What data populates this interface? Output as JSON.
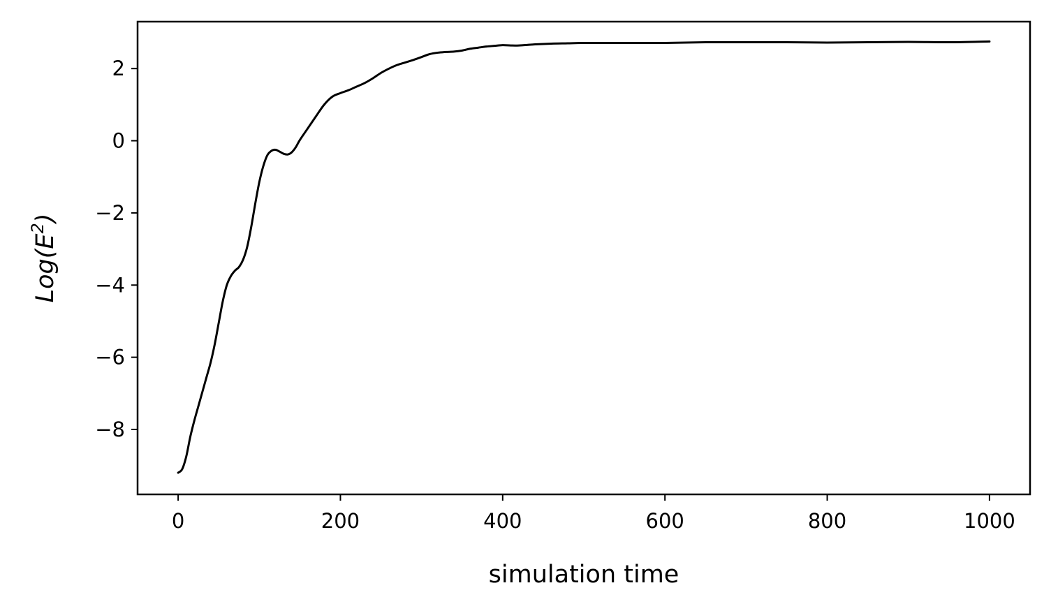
{
  "chart_data": {
    "type": "line",
    "xlabel": "simulation time",
    "ylabel_prefix": "Log(E",
    "ylabel_sup": "2",
    "ylabel_suffix": ")",
    "xlim": [
      -50,
      1050
    ],
    "ylim": [
      -9.8,
      3.3
    ],
    "x_ticks": [
      0,
      200,
      400,
      600,
      800,
      1000
    ],
    "x_tick_labels": [
      "0",
      "200",
      "400",
      "600",
      "800",
      "1000"
    ],
    "y_ticks": [
      2,
      0,
      -2,
      -4,
      -6,
      -8
    ],
    "y_tick_labels": [
      "2",
      "0",
      "−2",
      "−4",
      "−6",
      "−8"
    ],
    "grid": false,
    "line_color": "#000000",
    "series": [
      {
        "x": [
          0,
          5,
          10,
          15,
          20,
          25,
          30,
          35,
          40,
          45,
          50,
          55,
          60,
          65,
          70,
          75,
          80,
          85,
          90,
          95,
          100,
          105,
          110,
          115,
          120,
          125,
          130,
          135,
          140,
          145,
          150,
          160,
          170,
          180,
          190,
          200,
          210,
          220,
          230,
          240,
          250,
          260,
          270,
          280,
          290,
          300,
          310,
          320,
          330,
          340,
          350,
          360,
          370,
          380,
          390,
          400,
          410,
          420,
          440,
          460,
          480,
          500,
          550,
          600,
          650,
          700,
          750,
          800,
          850,
          900,
          950,
          1000
        ],
        "y": [
          -9.2,
          -9.1,
          -8.75,
          -8.2,
          -7.75,
          -7.35,
          -6.95,
          -6.55,
          -6.15,
          -5.65,
          -5.05,
          -4.45,
          -4.0,
          -3.75,
          -3.6,
          -3.5,
          -3.3,
          -2.95,
          -2.4,
          -1.75,
          -1.15,
          -0.7,
          -0.4,
          -0.28,
          -0.25,
          -0.3,
          -0.36,
          -0.38,
          -0.32,
          -0.18,
          0.02,
          0.35,
          0.68,
          1.0,
          1.22,
          1.32,
          1.4,
          1.5,
          1.6,
          1.73,
          1.88,
          2.0,
          2.1,
          2.17,
          2.24,
          2.32,
          2.4,
          2.44,
          2.46,
          2.47,
          2.5,
          2.55,
          2.58,
          2.61,
          2.63,
          2.65,
          2.64,
          2.64,
          2.67,
          2.69,
          2.7,
          2.71,
          2.71,
          2.71,
          2.73,
          2.73,
          2.73,
          2.72,
          2.73,
          2.74,
          2.73,
          2.75
        ]
      }
    ]
  }
}
